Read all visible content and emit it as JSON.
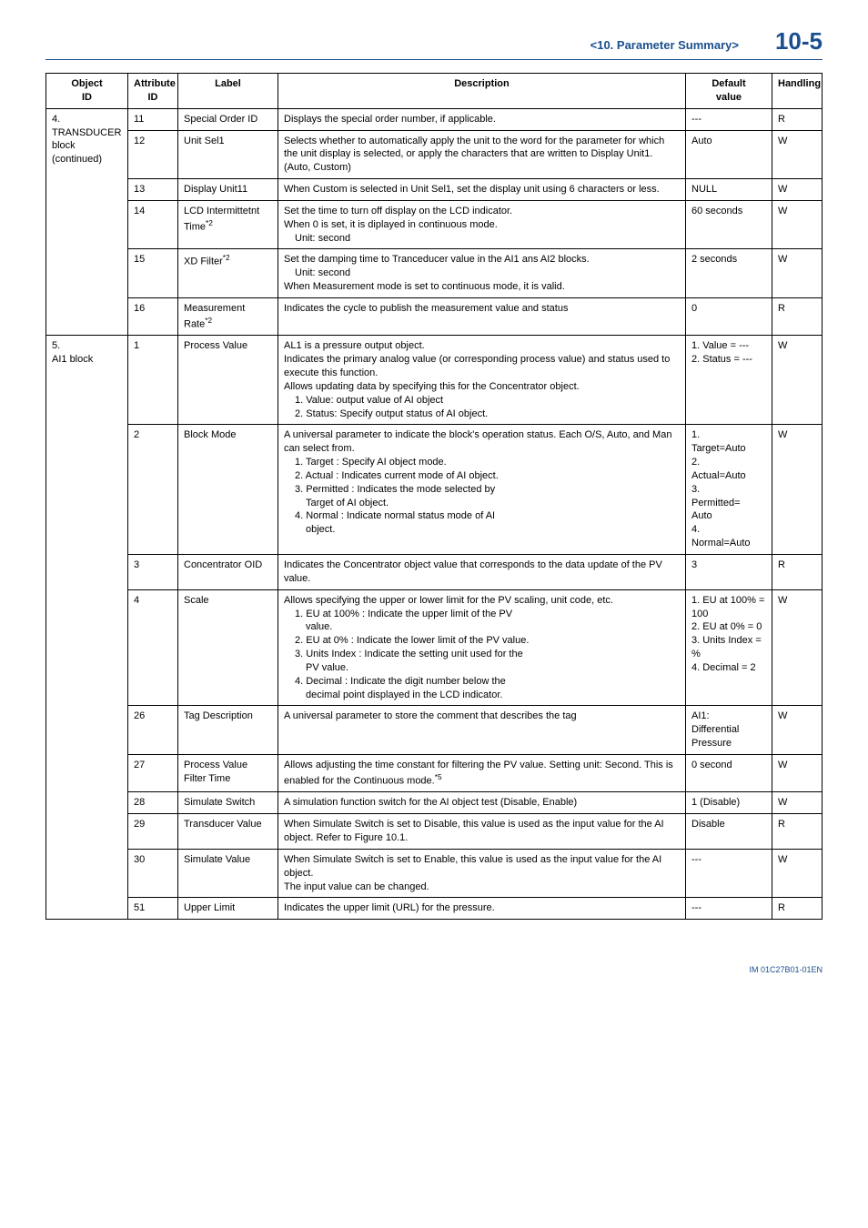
{
  "header": {
    "section_title": "<10.  Parameter Summary>",
    "page_number": "10-5"
  },
  "table": {
    "columns": {
      "object_id": "Object\nID",
      "attribute_id": "Attribute\nID",
      "label": "Label",
      "description": "Description",
      "default_value": "Default\nvalue",
      "handling": "Handling"
    }
  },
  "group4": {
    "title_line1": "4.",
    "title_line2": "TRANSDUCER",
    "title_line3": "block",
    "title_line4": "(continued)"
  },
  "row_11": {
    "attr": "11",
    "label": "Special Order ID",
    "desc": "Displays the special order number, if applicable.",
    "default": "---",
    "handling": "R"
  },
  "row_12": {
    "attr": "12",
    "label": "Unit Sel1",
    "desc": "Selects whether to automatically apply the unit to the word for the parameter for which the unit display is selected, or apply the characters that are written to Display Unit1. (Auto, Custom)",
    "default": "Auto",
    "handling": "W"
  },
  "row_13": {
    "attr": "13",
    "label": "Display Unit11",
    "desc": "When Custom is selected in Unit Sel1, set the display unit using 6 characters or less.",
    "default": "NULL",
    "handling": "W"
  },
  "row_14": {
    "attr": "14",
    "label_pre": "LCD Intermittetnt Time",
    "label_sup": "*2",
    "desc_l1": "Set the time to turn off display on the LCD indicator.",
    "desc_l2": "When 0 is set, it is diplayed in continuous mode.",
    "desc_l3": "Unit: second",
    "default": "60 seconds",
    "handling": "W"
  },
  "row_15": {
    "attr": "15",
    "label_pre": "XD Filter",
    "label_sup": "*2",
    "desc_l1": "Set the damping time to Tranceducer value in the AI1 ans AI2 blocks.",
    "desc_l2": "Unit: second",
    "desc_l3": "When Measurement mode is set to continuous mode, it is valid.",
    "default": "2 seconds",
    "handling": "W"
  },
  "row_16": {
    "attr": "16",
    "label_pre": "Measurement Rate",
    "label_sup": "*2",
    "desc": "Indicates the cycle to publish the measurement value and status",
    "default": "0",
    "handling": "R"
  },
  "group5": {
    "title_line1": "5.",
    "title_line2": "AI1 block"
  },
  "row_5_1": {
    "attr": "1",
    "label": "Process Value",
    "desc_l1": "AL1 is a pressure output object.",
    "desc_l2": "Indicates the primary analog value (or corresponding process value) and status used to execute this function.",
    "desc_l3": "Allows updating data by specifying this for the Concentrator object.",
    "desc_l4": "1. Value: output value of AI object",
    "desc_l5": "2. Status: Specify output status of AI object.",
    "def_l1": "1. Value = ---",
    "def_l2": "2. Status = ---",
    "handling": "W"
  },
  "row_5_2": {
    "attr": "2",
    "label": "Block Mode",
    "desc_l1": "A universal parameter to indicate the block's operation status. Each O/S, Auto, and Man can select from.",
    "desc_l2": "1. Target : Specify AI object mode.",
    "desc_l3": "2. Actual : Indicates current mode of AI object.",
    "desc_l4": "3. Permitted : Indicates the mode selected by",
    "desc_l4b": "Target of AI object.",
    "desc_l5": "4. Normal : Indicate normal status mode of AI",
    "desc_l5b": "object.",
    "def_l1": "1.",
    "def_l2": "Target=Auto",
    "def_l3": "2.",
    "def_l4": "Actual=Auto",
    "def_l5": "3.",
    "def_l6": "Permitted=",
    "def_l7": "Auto",
    "def_l8": "4.",
    "def_l9": "Normal=Auto",
    "handling": "W"
  },
  "row_5_3": {
    "attr": "3",
    "label": "Concentrator OID",
    "desc": "Indicates the Concentrator object value that corresponds to the data update of the PV value.",
    "default": "3",
    "handling": "R"
  },
  "row_5_4": {
    "attr": "4",
    "label": "Scale",
    "desc_l1": "Allows specifying the upper or lower limit for the PV scaling, unit code, etc.",
    "desc_l2": "1. EU at 100% : Indicate the upper limit of the PV",
    "desc_l2b": "value.",
    "desc_l3": "2. EU at 0% : Indicate the lower limit of the PV value.",
    "desc_l4": "3. Units Index : Indicate the setting unit used for the",
    "desc_l4b": "PV value.",
    "desc_l5": "4. Decimal : Indicate the digit number below the",
    "desc_l5b": "decimal point displayed in the LCD indicator.",
    "def_l1": "1. EU at 100% = 100",
    "def_l2": "2. EU at 0% = 0",
    "def_l3": "3. Units Index = %",
    "def_l4": "4. Decimal = 2",
    "handling": "W"
  },
  "row_5_26": {
    "attr": "26",
    "label": "Tag Description",
    "desc": "A universal parameter to store the comment that describes the tag",
    "def_l1": "AI1:",
    "def_l2": "Differential",
    "def_l3": "Pressure",
    "handling": "W"
  },
  "row_5_27": {
    "attr": "27",
    "label": "Process Value Filter Time",
    "desc_pre": "Allows adjusting the time constant for filtering the PV value. Setting unit: Second. This is enabled for the Continuous mode.",
    "desc_sup": "*5",
    "default": "0 second",
    "handling": "W"
  },
  "row_5_28": {
    "attr": "28",
    "label": "Simulate Switch",
    "desc": "A simulation function switch for the AI object test (Disable, Enable)",
    "default": "1 (Disable)",
    "handling": "W"
  },
  "row_5_29": {
    "attr": "29",
    "label": "Transducer Value",
    "desc": "When Simulate Switch is set to Disable, this value is used as the input value for the AI object. Refer to Figure 10.1.",
    "default": "Disable",
    "handling": "R"
  },
  "row_5_30": {
    "attr": "30",
    "label": "Simulate Value",
    "desc_l1": "When Simulate Switch is set to Enable, this value is used as the input value for the AI object.",
    "desc_l2": "The input value can be changed.",
    "default": "---",
    "handling": "W"
  },
  "row_5_51": {
    "attr": "51",
    "label": "Upper Limit",
    "desc": "Indicates the upper limit (URL) for the pressure.",
    "default": "---",
    "handling": "R"
  },
  "footer": {
    "doc_id": "IM 01C27B01-01EN"
  }
}
